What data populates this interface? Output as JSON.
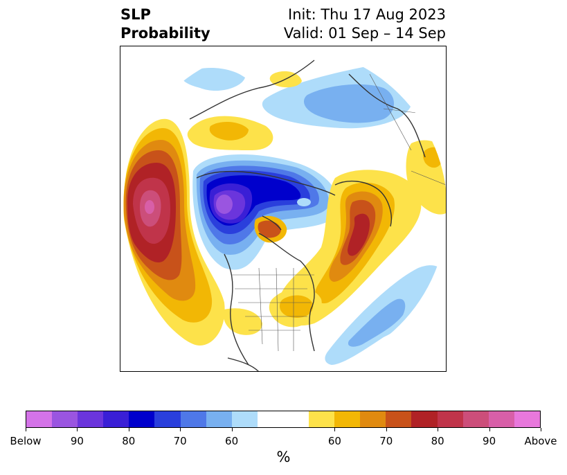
{
  "title": {
    "line1": "SLP",
    "line2": "Probability"
  },
  "subtitle": {
    "line1": "Init: Thu 17 Aug 2023",
    "line2": "Valid: 01 Sep – 14 Sep"
  },
  "colorbar": {
    "colors": [
      "#d473e8",
      "#9a55e0",
      "#6b35dc",
      "#3a1fd6",
      "#0000cc",
      "#2a3fdc",
      "#4f78e8",
      "#78b0f0",
      "#aedcfa",
      "#ffffff",
      "#ffffff",
      "#fde24a",
      "#f2b705",
      "#e08a10",
      "#c8521a",
      "#b02226",
      "#c0344a",
      "#cc4e7a",
      "#d85fa8",
      "#e878dc"
    ],
    "tick_labels": [
      "Below",
      "90",
      "80",
      "70",
      "60",
      "60",
      "70",
      "80",
      "90",
      "Above"
    ],
    "unit_label": "%"
  },
  "map": {
    "projection": "polar-stereographic",
    "region": "North Pacific / North America / Arctic",
    "features": [
      "coastlines",
      "country-borders",
      "state-borders"
    ]
  }
}
